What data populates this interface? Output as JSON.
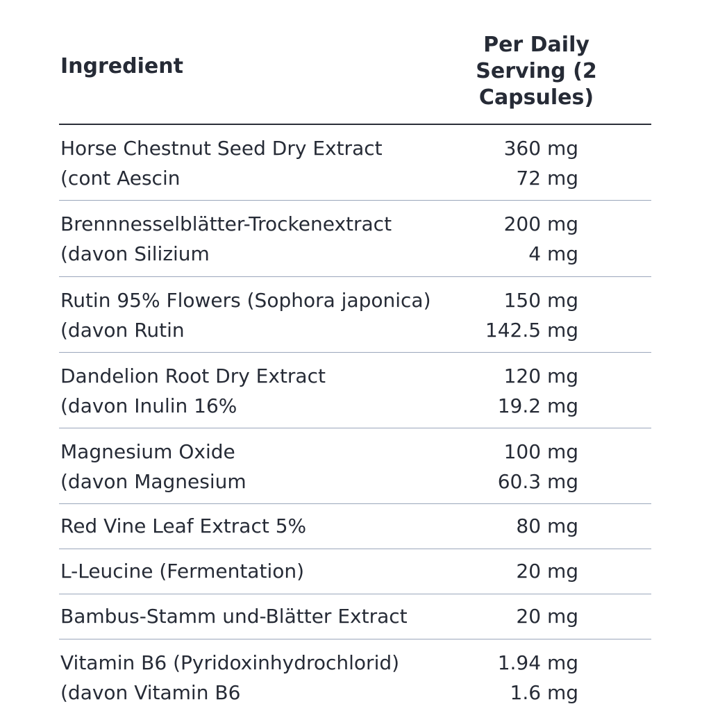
{
  "header": {
    "ingredient": "Ingredient",
    "per_serving": "Per Daily Serving (2 Capsules)"
  },
  "rows": [
    {
      "lines": [
        {
          "name": "Horse Chestnut Seed Dry Extract",
          "value": "360 mg"
        },
        {
          "name": "(cont Aescin",
          "value": "72 mg"
        }
      ]
    },
    {
      "lines": [
        {
          "name": "Brennnesselblätter-Trockenextract",
          "value": "200 mg"
        },
        {
          "name": "(davon Silizium",
          "value": "4 mg"
        }
      ]
    },
    {
      "lines": [
        {
          "name": "Rutin 95% Flowers (Sophora japonica)",
          "value": "150 mg"
        },
        {
          "name": "(davon Rutin",
          "value": "142.5 mg"
        }
      ]
    },
    {
      "lines": [
        {
          "name": "Dandelion Root Dry Extract",
          "value": "120 mg"
        },
        {
          "name": "(davon Inulin 16%",
          "value": "19.2 mg"
        }
      ]
    },
    {
      "lines": [
        {
          "name": "Magnesium Oxide",
          "value": "100 mg"
        },
        {
          "name": "(davon Magnesium",
          "value": "60.3 mg"
        }
      ]
    },
    {
      "lines": [
        {
          "name": "Red Vine Leaf Extract 5%",
          "value": "80 mg"
        }
      ]
    },
    {
      "lines": [
        {
          "name": "L-Leucine (Fermentation)",
          "value": "20 mg"
        }
      ]
    },
    {
      "lines": [
        {
          "name": "Bambus-Stamm und-Blätter Extract",
          "value": "20 mg"
        }
      ]
    },
    {
      "lines": [
        {
          "name": "Vitamin B6 (Pyridoxinhydrochlorid)",
          "value": "1.94 mg"
        },
        {
          "name": "(davon Vitamin B6",
          "value": "1.6 mg"
        }
      ]
    }
  ]
}
